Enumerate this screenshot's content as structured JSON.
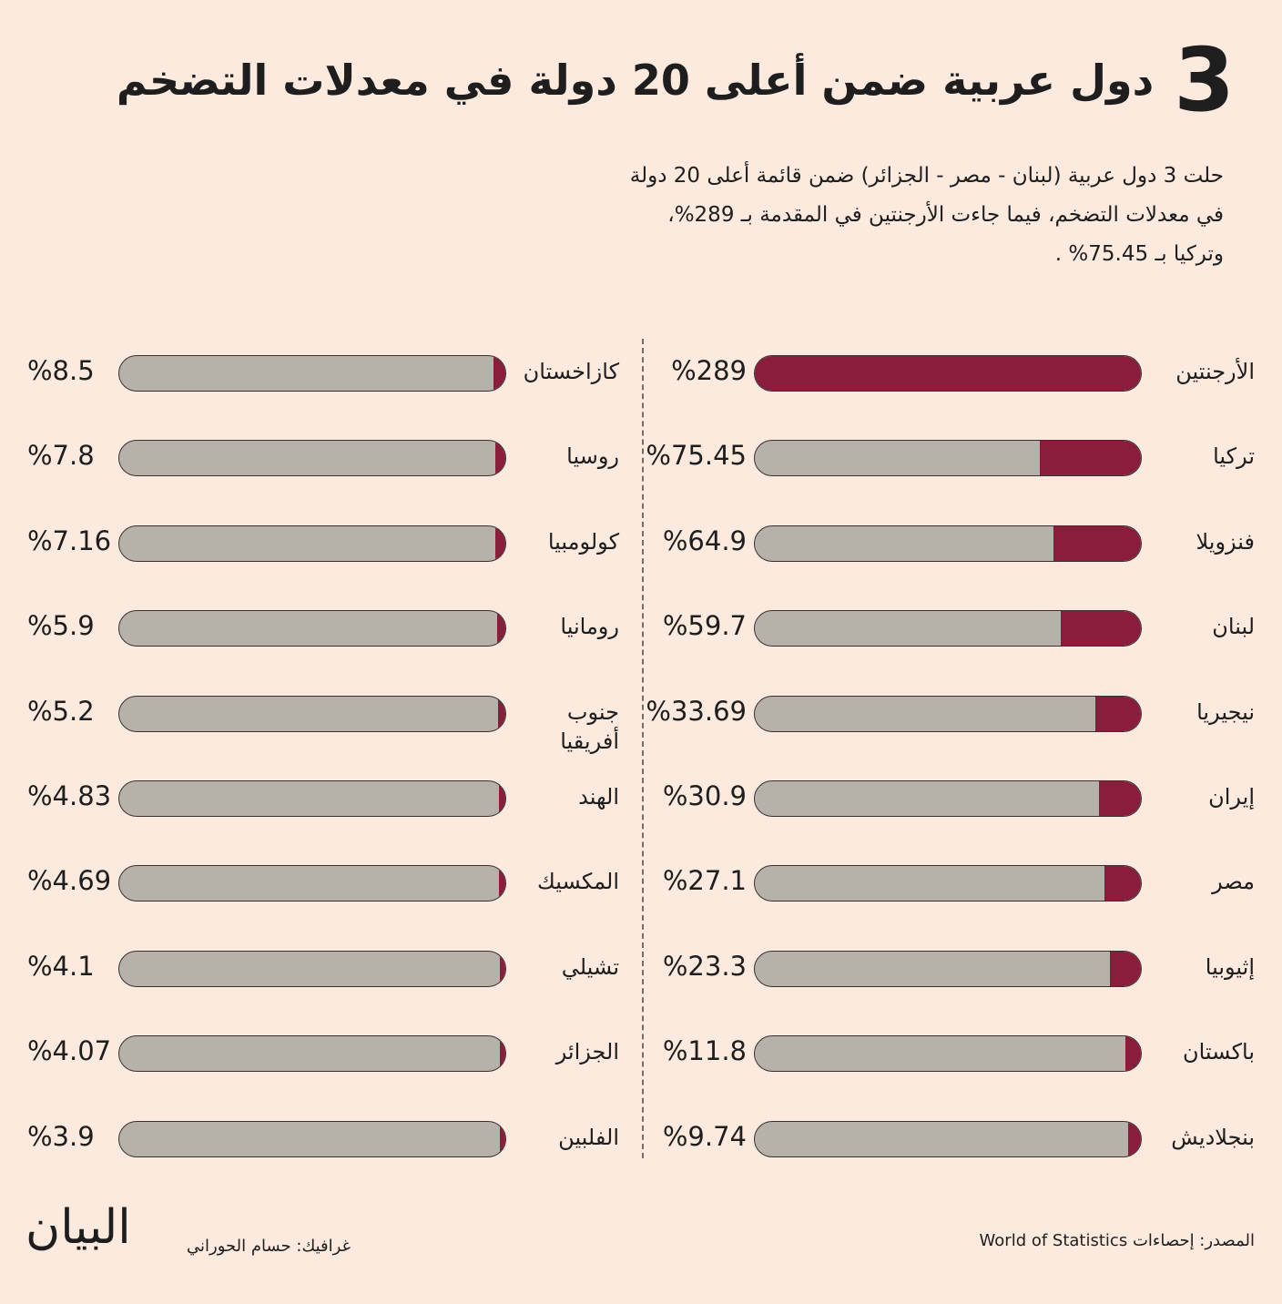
{
  "header": {
    "number": "3",
    "title": "دول عربية ضمن أعلى 20 دولة في معدلات التضخم",
    "description": [
      "حلت 3 دول عربية (لبنان - مصر - الجزائر) ضمن قائمة أعلى 20 دولة",
      "في معدلات التضخم، فيما جاءت الأرجنتين في المقدمة بـ 289%،",
      "وتركيا بـ 75.45% ."
    ]
  },
  "chart_data": {
    "type": "bar",
    "orientation": "horizontal",
    "categories": [
      "الأرجنتين",
      "تركيا",
      "فنزويلا",
      "لبنان",
      "نيجيريا",
      "إيران",
      "مصر",
      "إثيوبيا",
      "باكستان",
      "بنجلاديش",
      "كازاخستان",
      "روسيا",
      "كولومبيا",
      "رومانيا",
      "جنوب أفريقيا",
      "الهند",
      "المكسيك",
      "تشيلي",
      "الجزائر",
      "الفلبين"
    ],
    "values": [
      289,
      75.45,
      64.9,
      59.7,
      33.69,
      30.9,
      27.1,
      23.3,
      11.8,
      9.74,
      8.5,
      7.8,
      7.16,
      5.9,
      5.2,
      4.83,
      4.69,
      4.1,
      4.07,
      3.9
    ],
    "value_labels": [
      "%289",
      "%75.45",
      "%64.9",
      "%59.7",
      "%33.69",
      "%30.9",
      "%27.1",
      "%23.3",
      "%11.8",
      "%9.74",
      "%8.5",
      "%7.8",
      "%7.16",
      "%5.9",
      "%5.2",
      "%4.83",
      "%4.69",
      "%4.1",
      "%4.07",
      "%3.9"
    ],
    "xlim": [
      0,
      289
    ],
    "color": "#8a1c3c"
  },
  "footer": {
    "source": "المصدر: إحصاءات World of Statistics",
    "credit": "غرافيك: حسام الحوراني",
    "logo": "البيان"
  }
}
